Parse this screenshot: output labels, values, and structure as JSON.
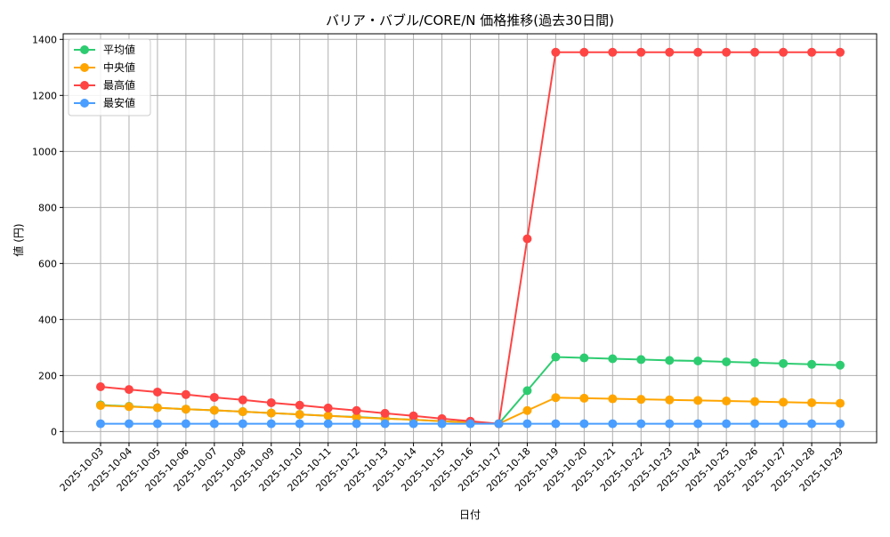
{
  "chart_data": {
    "type": "line",
    "title": "バリア・バブル/CORE/N 価格推移(過去30日間)",
    "xlabel": "日付",
    "ylabel": "値 (円)",
    "ylim": [
      -40,
      1420
    ],
    "yticks": [
      0,
      200,
      400,
      600,
      800,
      1000,
      1200,
      1400
    ],
    "grid": true,
    "legend_position": "top-left",
    "categories": [
      "2025-10-03",
      "2025-10-04",
      "2025-10-05",
      "2025-10-06",
      "2025-10-07",
      "2025-10-08",
      "2025-10-09",
      "2025-10-10",
      "2025-10-11",
      "2025-10-12",
      "2025-10-13",
      "2025-10-14",
      "2025-10-15",
      "2025-10-16",
      "2025-10-17",
      "2025-10-18",
      "2025-10-19",
      "2025-10-20",
      "2025-10-21",
      "2025-10-22",
      "2025-10-23",
      "2025-10-24",
      "2025-10-25",
      "2025-10-26",
      "2025-10-27",
      "2025-10-28",
      "2025-10-29"
    ],
    "series": [
      {
        "name": "平均値",
        "color": "#2ecc71",
        "values": [
          95,
          90,
          85,
          80,
          76,
          71,
          66,
          61,
          56,
          52,
          47,
          42,
          37,
          33,
          28,
          146,
          266,
          263,
          260,
          257,
          254,
          252,
          249,
          246,
          243,
          240,
          237
        ]
      },
      {
        "name": "中央値",
        "color": "#ffa500",
        "values": [
          93,
          89,
          85,
          80,
          76,
          71,
          66,
          61,
          56,
          51,
          46,
          42,
          37,
          32,
          28,
          75,
          121,
          119,
          117,
          115,
          113,
          111,
          109,
          107,
          105,
          103,
          101
        ]
      },
      {
        "name": "最高値",
        "color": "#ff4444",
        "values": [
          160,
          150,
          141,
          132,
          122,
          113,
          103,
          94,
          84,
          75,
          65,
          56,
          46,
          37,
          28,
          688,
          1354,
          1354,
          1354,
          1354,
          1354,
          1354,
          1354,
          1354,
          1354,
          1354,
          1354
        ]
      },
      {
        "name": "最安値",
        "color": "#4a9eff",
        "values": [
          28,
          28,
          28,
          28,
          28,
          28,
          28,
          28,
          28,
          28,
          28,
          28,
          28,
          28,
          28,
          28,
          28,
          28,
          28,
          28,
          28,
          28,
          28,
          28,
          28,
          28,
          28
        ]
      }
    ]
  }
}
